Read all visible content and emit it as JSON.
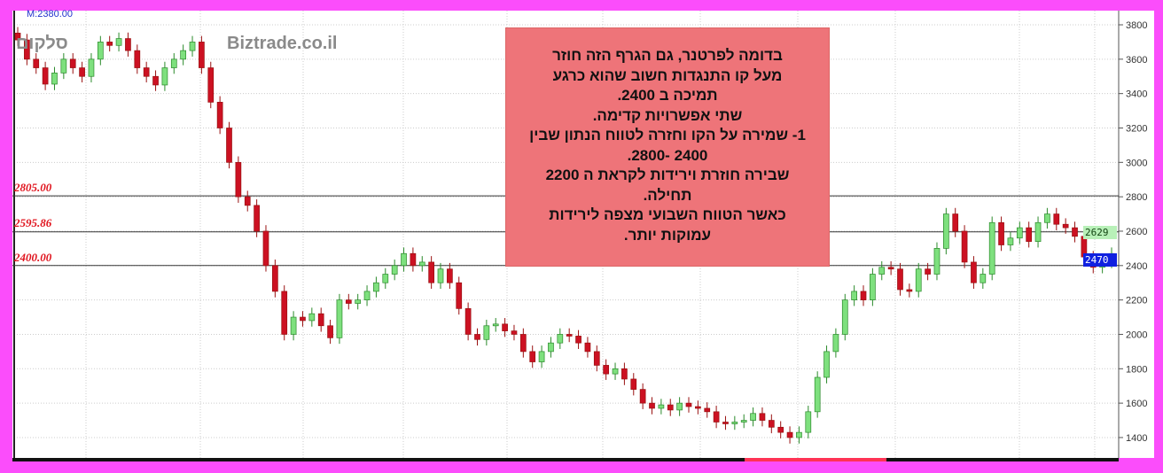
{
  "watermarks": {
    "left": "סלקום",
    "site": "Biztrade.co.il"
  },
  "marker_label": "M:2380.00",
  "horizontal_lines": [
    {
      "label": "2805.00",
      "value": 2805
    },
    {
      "label": "2595.86",
      "value": 2595.86
    },
    {
      "label": "2400.00",
      "value": 2400
    }
  ],
  "price_tags": {
    "upper": "2629",
    "current": "2470"
  },
  "note": [
    "בדומה לפרטנר, גם הגרף הזה  חוזר",
    "מעל קו התנגדות חשוב שהוא כרגע",
    "תמיכה  ב 2400.",
    "שתי אפשרויות   קדימה.",
    "1-  שמירה  על  הקו וחזרה לטווח הנתון שבין",
    "2400 -2800.",
    "שבירה  חוזרת  וירידות לקראת ה  2200",
    "תחילה.",
    "כאשר  הטווח  השבועי  מצפה לירידות",
    "עמוקות יותר."
  ],
  "colors": {
    "up": "#7ee07e",
    "down": "#cc1122",
    "frame": "#fb4dfb",
    "note_bg": "#ee7479",
    "upper_tag": "#b8f0b8",
    "current_tag": "#1020e0"
  },
  "chart_data": {
    "type": "candlestick",
    "ylim": [
      1300,
      3880
    ],
    "yticks": [
      1400,
      1600,
      1800,
      2000,
      2200,
      2400,
      2600,
      2800,
      3000,
      3200,
      3400,
      3600,
      3800
    ],
    "grid": true,
    "closes": [
      3712,
      3600,
      3550,
      3455,
      3520,
      3600,
      3550,
      3500,
      3600,
      3700,
      3680,
      3720,
      3650,
      3550,
      3500,
      3450,
      3550,
      3600,
      3650,
      3700,
      3550,
      3350,
      3200,
      3000,
      2800,
      2750,
      2600,
      2400,
      2250,
      2000,
      2100,
      2080,
      2120,
      2050,
      1980,
      2200,
      2180,
      2200,
      2250,
      2300,
      2350,
      2400,
      2470,
      2400,
      2420,
      2300,
      2380,
      2300,
      2150,
      2000,
      1970,
      2050,
      2060,
      2020,
      2000,
      1900,
      1840,
      1900,
      1950,
      2000,
      1990,
      1950,
      1900,
      1820,
      1770,
      1800,
      1740,
      1680,
      1600,
      1570,
      1590,
      1560,
      1600,
      1580,
      1570,
      1550,
      1490,
      1480,
      1490,
      1500,
      1540,
      1500,
      1460,
      1430,
      1400,
      1430,
      1550,
      1750,
      1900,
      2000,
      2200,
      2250,
      2200,
      2350,
      2390,
      2380,
      2260,
      2250,
      2380,
      2350,
      2500,
      2700,
      2600,
      2420,
      2300,
      2350,
      2650,
      2520,
      2560,
      2620,
      2540,
      2650,
      2700,
      2640,
      2620,
      2570,
      2450,
      2390,
      2420,
      2470
    ]
  }
}
